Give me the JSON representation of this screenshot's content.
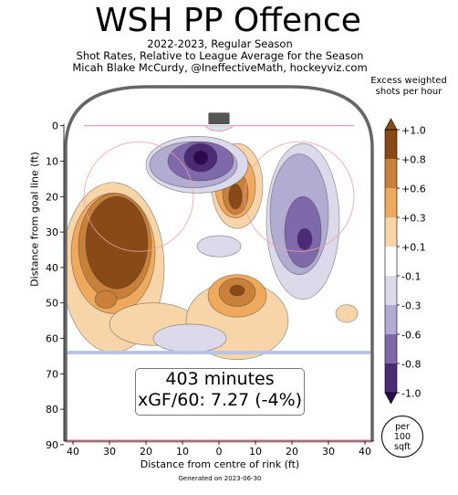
{
  "chart_data": {
    "type": "heatmap",
    "title": "WSH PP Offence",
    "subtitle_lines": [
      "2022-2023, Regular Season",
      "Shot Rates, Relative to League Average for the Season",
      "Micah Blake McCurdy, @IneffectiveMath, hockeyviz.com"
    ],
    "xlabel": "Distance from centre of rink (ft)",
    "ylabel": "Distance from goal line (ft)",
    "x_ticks": [
      40,
      30,
      20,
      10,
      0,
      10,
      20,
      30,
      40
    ],
    "x_range": [
      -42.5,
      42.5
    ],
    "y_ticks": [
      0,
      10,
      20,
      30,
      40,
      50,
      60,
      70,
      80,
      90
    ],
    "y_range": [
      -11,
      89
    ],
    "colorbar": {
      "title": "Excess weighted shots per hour",
      "labels": [
        "+1.0",
        "+0.8",
        "+0.6",
        "+0.3",
        "+0.1",
        "-0.1",
        "-0.3",
        "-0.6",
        "-0.8",
        "-1.0"
      ],
      "colors": [
        "#8a4a17",
        "#c8803a",
        "#eea95c",
        "#f8d5a8",
        "#ffffff",
        "#dcdaea",
        "#b2abd2",
        "#7f69ab",
        "#4b2b75"
      ]
    },
    "info": {
      "minutes": "403 minutes",
      "xgf": "xGF/60: 7.27 (-4%)"
    },
    "per_label": [
      "per",
      "100",
      "sqft"
    ],
    "generated": "Generated on 2023-06-30",
    "blobs": [
      {
        "level": "+0.1",
        "color": "#f8d5a8",
        "x": -29,
        "y": 40,
        "rx": 14,
        "ry": 24
      },
      {
        "level": "+0.3",
        "color": "#eea95c",
        "x": -29,
        "y": 36,
        "rx": 11.5,
        "ry": 17
      },
      {
        "level": "+0.6",
        "color": "#c8803a",
        "x": -28.5,
        "y": 34,
        "rx": 10,
        "ry": 15
      },
      {
        "level": "+1.0",
        "color": "#8a4a17",
        "x": -28,
        "y": 33,
        "rx": 8.5,
        "ry": 13
      },
      {
        "level": "+0.8",
        "color": "#c8803a",
        "x": -31,
        "y": 49,
        "rx": 3,
        "ry": 2.5
      },
      {
        "level": "+0.1",
        "color": "#f8d5a8",
        "x": -18,
        "y": 56,
        "rx": 12,
        "ry": 6
      },
      {
        "level": "+0.1",
        "color": "#f8d5a8",
        "x": 5,
        "y": 55,
        "rx": 14,
        "ry": 11
      },
      {
        "level": "+0.3",
        "color": "#eea95c",
        "x": 5,
        "y": 48,
        "rx": 8,
        "ry": 6
      },
      {
        "level": "+0.8",
        "color": "#c8803a",
        "x": 5,
        "y": 47,
        "rx": 5,
        "ry": 4
      },
      {
        "level": "+1.0",
        "color": "#8a4a17",
        "x": 5,
        "y": 46.5,
        "rx": 2,
        "ry": 1.5
      },
      {
        "level": "+0.1",
        "color": "#f8d5a8",
        "x": 5,
        "y": 17,
        "rx": 7,
        "ry": 12
      },
      {
        "level": "+0.3",
        "color": "#eea95c",
        "x": 4.5,
        "y": 17,
        "rx": 5.5,
        "ry": 9
      },
      {
        "level": "+0.8",
        "color": "#c8803a",
        "x": 4.5,
        "y": 19,
        "rx": 3.5,
        "ry": 6
      },
      {
        "level": "+1.0",
        "color": "#8a4a17",
        "x": 4.5,
        "y": 20,
        "rx": 1.8,
        "ry": 3.5
      },
      {
        "level": "+0.1",
        "color": "#f8d5a8",
        "x": 35,
        "y": 53,
        "rx": 3,
        "ry": 2.5
      },
      {
        "level": "-0.1",
        "color": "#dcdaea",
        "x": -6,
        "y": 11,
        "rx": 14,
        "ry": 8
      },
      {
        "level": "-0.3",
        "color": "#b2abd2",
        "x": -7,
        "y": 11,
        "rx": 12,
        "ry": 6.5
      },
      {
        "level": "-0.6",
        "color": "#7f69ab",
        "x": -5,
        "y": 10,
        "rx": 9,
        "ry": 5.5
      },
      {
        "level": "-0.8",
        "color": "#4b2b75",
        "x": -5,
        "y": 9,
        "rx": 4.5,
        "ry": 4
      },
      {
        "level": "-1.0",
        "color": "#2d0a4e",
        "x": -5,
        "y": 9,
        "rx": 2,
        "ry": 2
      },
      {
        "level": "-0.1",
        "color": "#dcdaea",
        "x": 23,
        "y": 27,
        "rx": 10,
        "ry": 22
      },
      {
        "level": "-0.3",
        "color": "#b2abd2",
        "x": 22,
        "y": 25,
        "rx": 8,
        "ry": 17
      },
      {
        "level": "-0.6",
        "color": "#7f69ab",
        "x": 23,
        "y": 30,
        "rx": 5,
        "ry": 10
      },
      {
        "level": "-0.8",
        "color": "#4b2b75",
        "x": 23.5,
        "y": 32,
        "rx": 2,
        "ry": 3
      },
      {
        "level": "-0.1",
        "color": "#dcdaea",
        "x": 0,
        "y": 34,
        "rx": 6,
        "ry": 3
      },
      {
        "level": "-0.1",
        "color": "#dcdaea",
        "x": -8,
        "y": 60,
        "rx": 10,
        "ry": 4
      }
    ]
  }
}
